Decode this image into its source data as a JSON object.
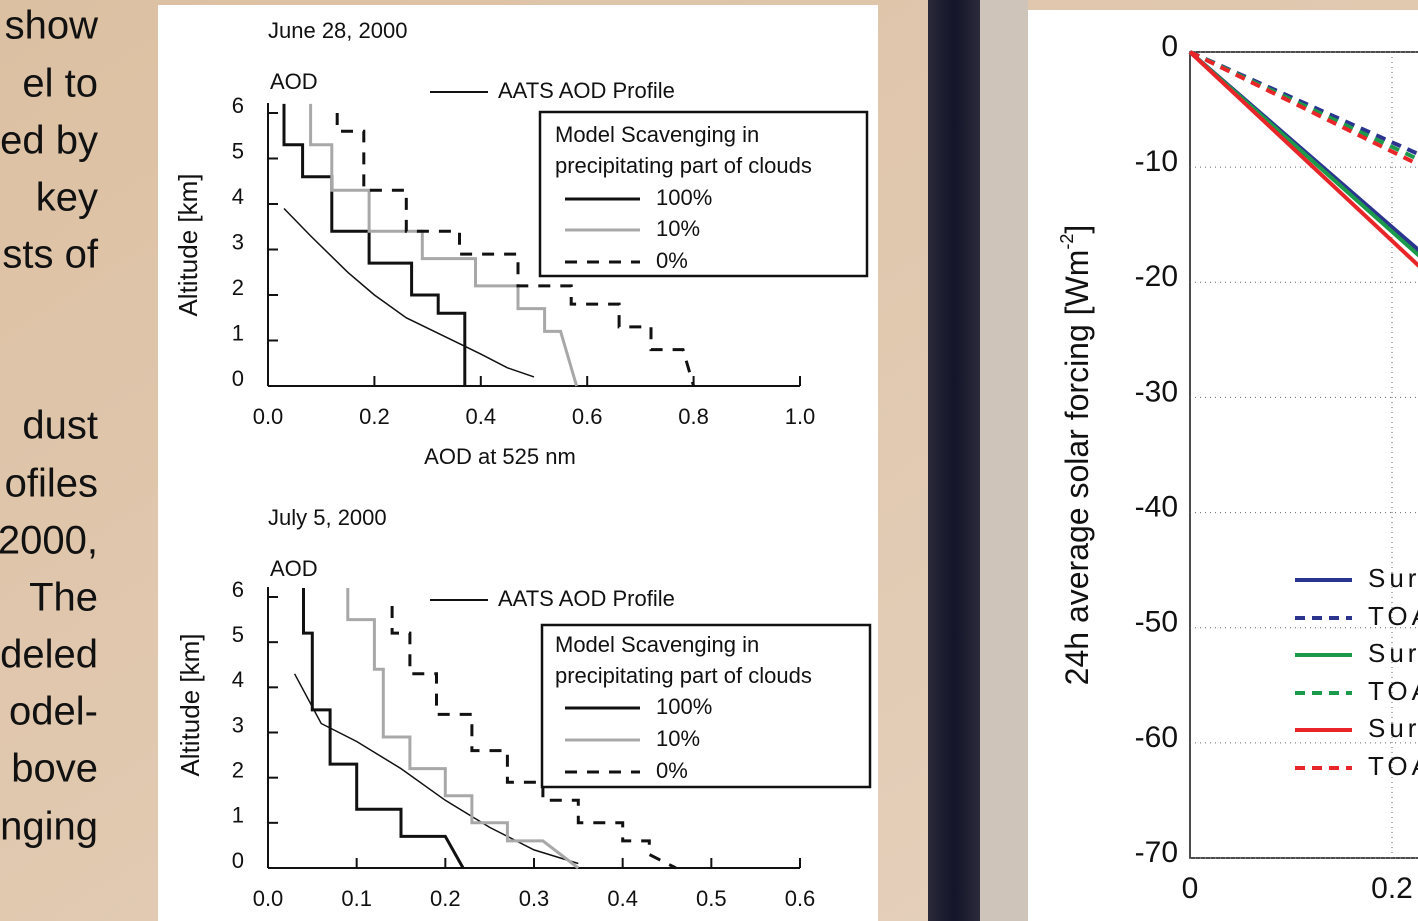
{
  "slide_text": [
    "show",
    "el  to",
    "ed by",
    "key",
    "sts of",
    "dust",
    "ofiles",
    "2000,",
    "The",
    "deled",
    "odel-",
    "bove",
    "nging"
  ],
  "chart_data": [
    {
      "type": "line",
      "title": "June 28, 2000",
      "annotation": "AOD",
      "x_label": "AOD at 525 nm",
      "y_label": "Altitude [km]",
      "legend_title": [
        "Model Scavenging in",
        "precipitating part of clouds"
      ],
      "xlim": [
        0,
        1
      ],
      "xticks": [
        {
          "value": 0,
          "label": "0.0"
        },
        0.2,
        0.4,
        0.6,
        0.8,
        {
          "value": 1,
          "label": "1.0"
        }
      ],
      "ylim": [
        0,
        6
      ],
      "yticks": [
        0,
        1,
        2,
        3,
        4,
        5,
        6
      ],
      "grid": false,
      "series": [
        {
          "name": "AATS AOD Profile",
          "color": "#111111",
          "dash": false,
          "x": [
            0.03,
            0.08,
            0.15,
            0.2,
            0.26,
            0.33,
            0.4,
            0.45,
            0.5
          ],
          "values": [
            3.9,
            3.3,
            2.5,
            2.0,
            1.5,
            1.1,
            0.7,
            0.4,
            0.2
          ]
        },
        {
          "name": "100%",
          "color": "#111111",
          "dash": false,
          "x": [
            0.03,
            0.03,
            0.065,
            0.065,
            0.12,
            0.12,
            0.19,
            0.19,
            0.27,
            0.27,
            0.32,
            0.32,
            0.37,
            0.37
          ],
          "values": [
            6.2,
            5.3,
            5.3,
            4.6,
            4.6,
            3.4,
            3.4,
            2.7,
            2.7,
            2.0,
            2.0,
            1.6,
            1.6,
            0
          ]
        },
        {
          "name": "10%",
          "color": "#a8a8a8",
          "dash": false,
          "x": [
            0.08,
            0.08,
            0.12,
            0.12,
            0.19,
            0.19,
            0.29,
            0.29,
            0.39,
            0.39,
            0.47,
            0.47,
            0.52,
            0.52,
            0.55,
            0.58
          ],
          "values": [
            6.2,
            5.3,
            5.3,
            4.3,
            4.3,
            3.4,
            3.4,
            2.8,
            2.8,
            2.2,
            2.2,
            1.7,
            1.7,
            1.2,
            1.2,
            0
          ]
        },
        {
          "name": "0%",
          "color": "#111111",
          "dash": true,
          "x": [
            0.13,
            0.13,
            0.18,
            0.18,
            0.26,
            0.26,
            0.36,
            0.36,
            0.47,
            0.47,
            0.57,
            0.57,
            0.66,
            0.66,
            0.72,
            0.72,
            0.78,
            0.8
          ],
          "values": [
            6.0,
            5.6,
            5.6,
            4.3,
            4.3,
            3.4,
            3.4,
            2.9,
            2.9,
            2.2,
            2.2,
            1.8,
            1.8,
            1.3,
            1.3,
            0.8,
            0.8,
            0
          ]
        }
      ]
    },
    {
      "type": "line",
      "title": "July 5, 2000",
      "annotation": "AOD",
      "y_label": "Altitude [km]",
      "legend_title": [
        "Model Scavenging in",
        "precipitating part of clouds"
      ],
      "xlim": [
        0,
        0.6
      ],
      "xticks": [
        {
          "value": 0,
          "label": "0.0"
        },
        0.1,
        0.2,
        0.3,
        0.4,
        0.5,
        0.6
      ],
      "ylim": [
        0,
        6
      ],
      "yticks": [
        0,
        1,
        2,
        3,
        4,
        5,
        6
      ],
      "grid": false,
      "series": [
        {
          "name": "AATS AOD Profile",
          "color": "#111111",
          "dash": false,
          "x": [
            0.03,
            0.06,
            0.1,
            0.15,
            0.2,
            0.25,
            0.3,
            0.35
          ],
          "values": [
            4.3,
            3.2,
            2.8,
            2.2,
            1.5,
            0.9,
            0.4,
            0.1
          ]
        },
        {
          "name": "100%",
          "color": "#111111",
          "dash": false,
          "x": [
            0.04,
            0.04,
            0.05,
            0.05,
            0.07,
            0.07,
            0.1,
            0.1,
            0.15,
            0.15,
            0.2,
            0.22
          ],
          "values": [
            6.2,
            5.2,
            5.2,
            3.5,
            3.5,
            2.3,
            2.3,
            1.3,
            1.3,
            0.7,
            0.7,
            0
          ]
        },
        {
          "name": "10%",
          "color": "#a8a8a8",
          "dash": false,
          "x": [
            0.09,
            0.09,
            0.12,
            0.12,
            0.13,
            0.13,
            0.16,
            0.16,
            0.2,
            0.2,
            0.23,
            0.23,
            0.27,
            0.27,
            0.31,
            0.35
          ],
          "values": [
            6.2,
            5.5,
            5.5,
            4.4,
            4.4,
            2.9,
            2.9,
            2.2,
            2.2,
            1.6,
            1.6,
            1.0,
            1.0,
            0.6,
            0.6,
            0
          ]
        },
        {
          "name": "0%",
          "color": "#111111",
          "dash": true,
          "x": [
            0.14,
            0.14,
            0.16,
            0.16,
            0.19,
            0.19,
            0.23,
            0.23,
            0.27,
            0.27,
            0.31,
            0.31,
            0.35,
            0.35,
            0.4,
            0.4,
            0.43,
            0.43,
            0.46
          ],
          "values": [
            5.8,
            5.2,
            5.2,
            4.3,
            4.3,
            3.4,
            3.4,
            2.6,
            2.6,
            1.9,
            1.9,
            1.5,
            1.5,
            1.0,
            1.0,
            0.6,
            0.6,
            0.3,
            0
          ]
        }
      ]
    },
    {
      "type": "line",
      "y_label": "24h average solar forcing [Wm",
      "y_label_sup": "-2",
      "y_label_end": "]",
      "xlim": [
        0,
        0.2
      ],
      "xticks": [
        0,
        0.2
      ],
      "ylim": [
        -70,
        0
      ],
      "yticks": [
        0,
        -10,
        -20,
        -30,
        -40,
        -50,
        -60,
        -70
      ],
      "grid": true,
      "series": [
        {
          "name": "Sur",
          "color": "#2b3590",
          "dash": false,
          "x": [
            0,
            0.25
          ],
          "values": [
            0,
            -19
          ]
        },
        {
          "name": "TOA",
          "color": "#2b3590",
          "dash": true,
          "x": [
            0,
            0.25
          ],
          "values": [
            0,
            -9.8
          ]
        },
        {
          "name": "Sur",
          "color": "#1a9a4a",
          "dash": false,
          "x": [
            0,
            0.25
          ],
          "values": [
            0,
            -19.5
          ]
        },
        {
          "name": "TOA",
          "color": "#1a9a4a",
          "dash": true,
          "x": [
            0,
            0.25
          ],
          "values": [
            0,
            -10.3
          ]
        },
        {
          "name": "Sur",
          "color": "#e8262a",
          "dash": false,
          "x": [
            0,
            0.25
          ],
          "values": [
            0,
            -20.5
          ]
        },
        {
          "name": "TOA",
          "color": "#e8262a",
          "dash": true,
          "x": [
            0,
            0.25
          ],
          "values": [
            0,
            -10.8
          ]
        }
      ]
    }
  ]
}
